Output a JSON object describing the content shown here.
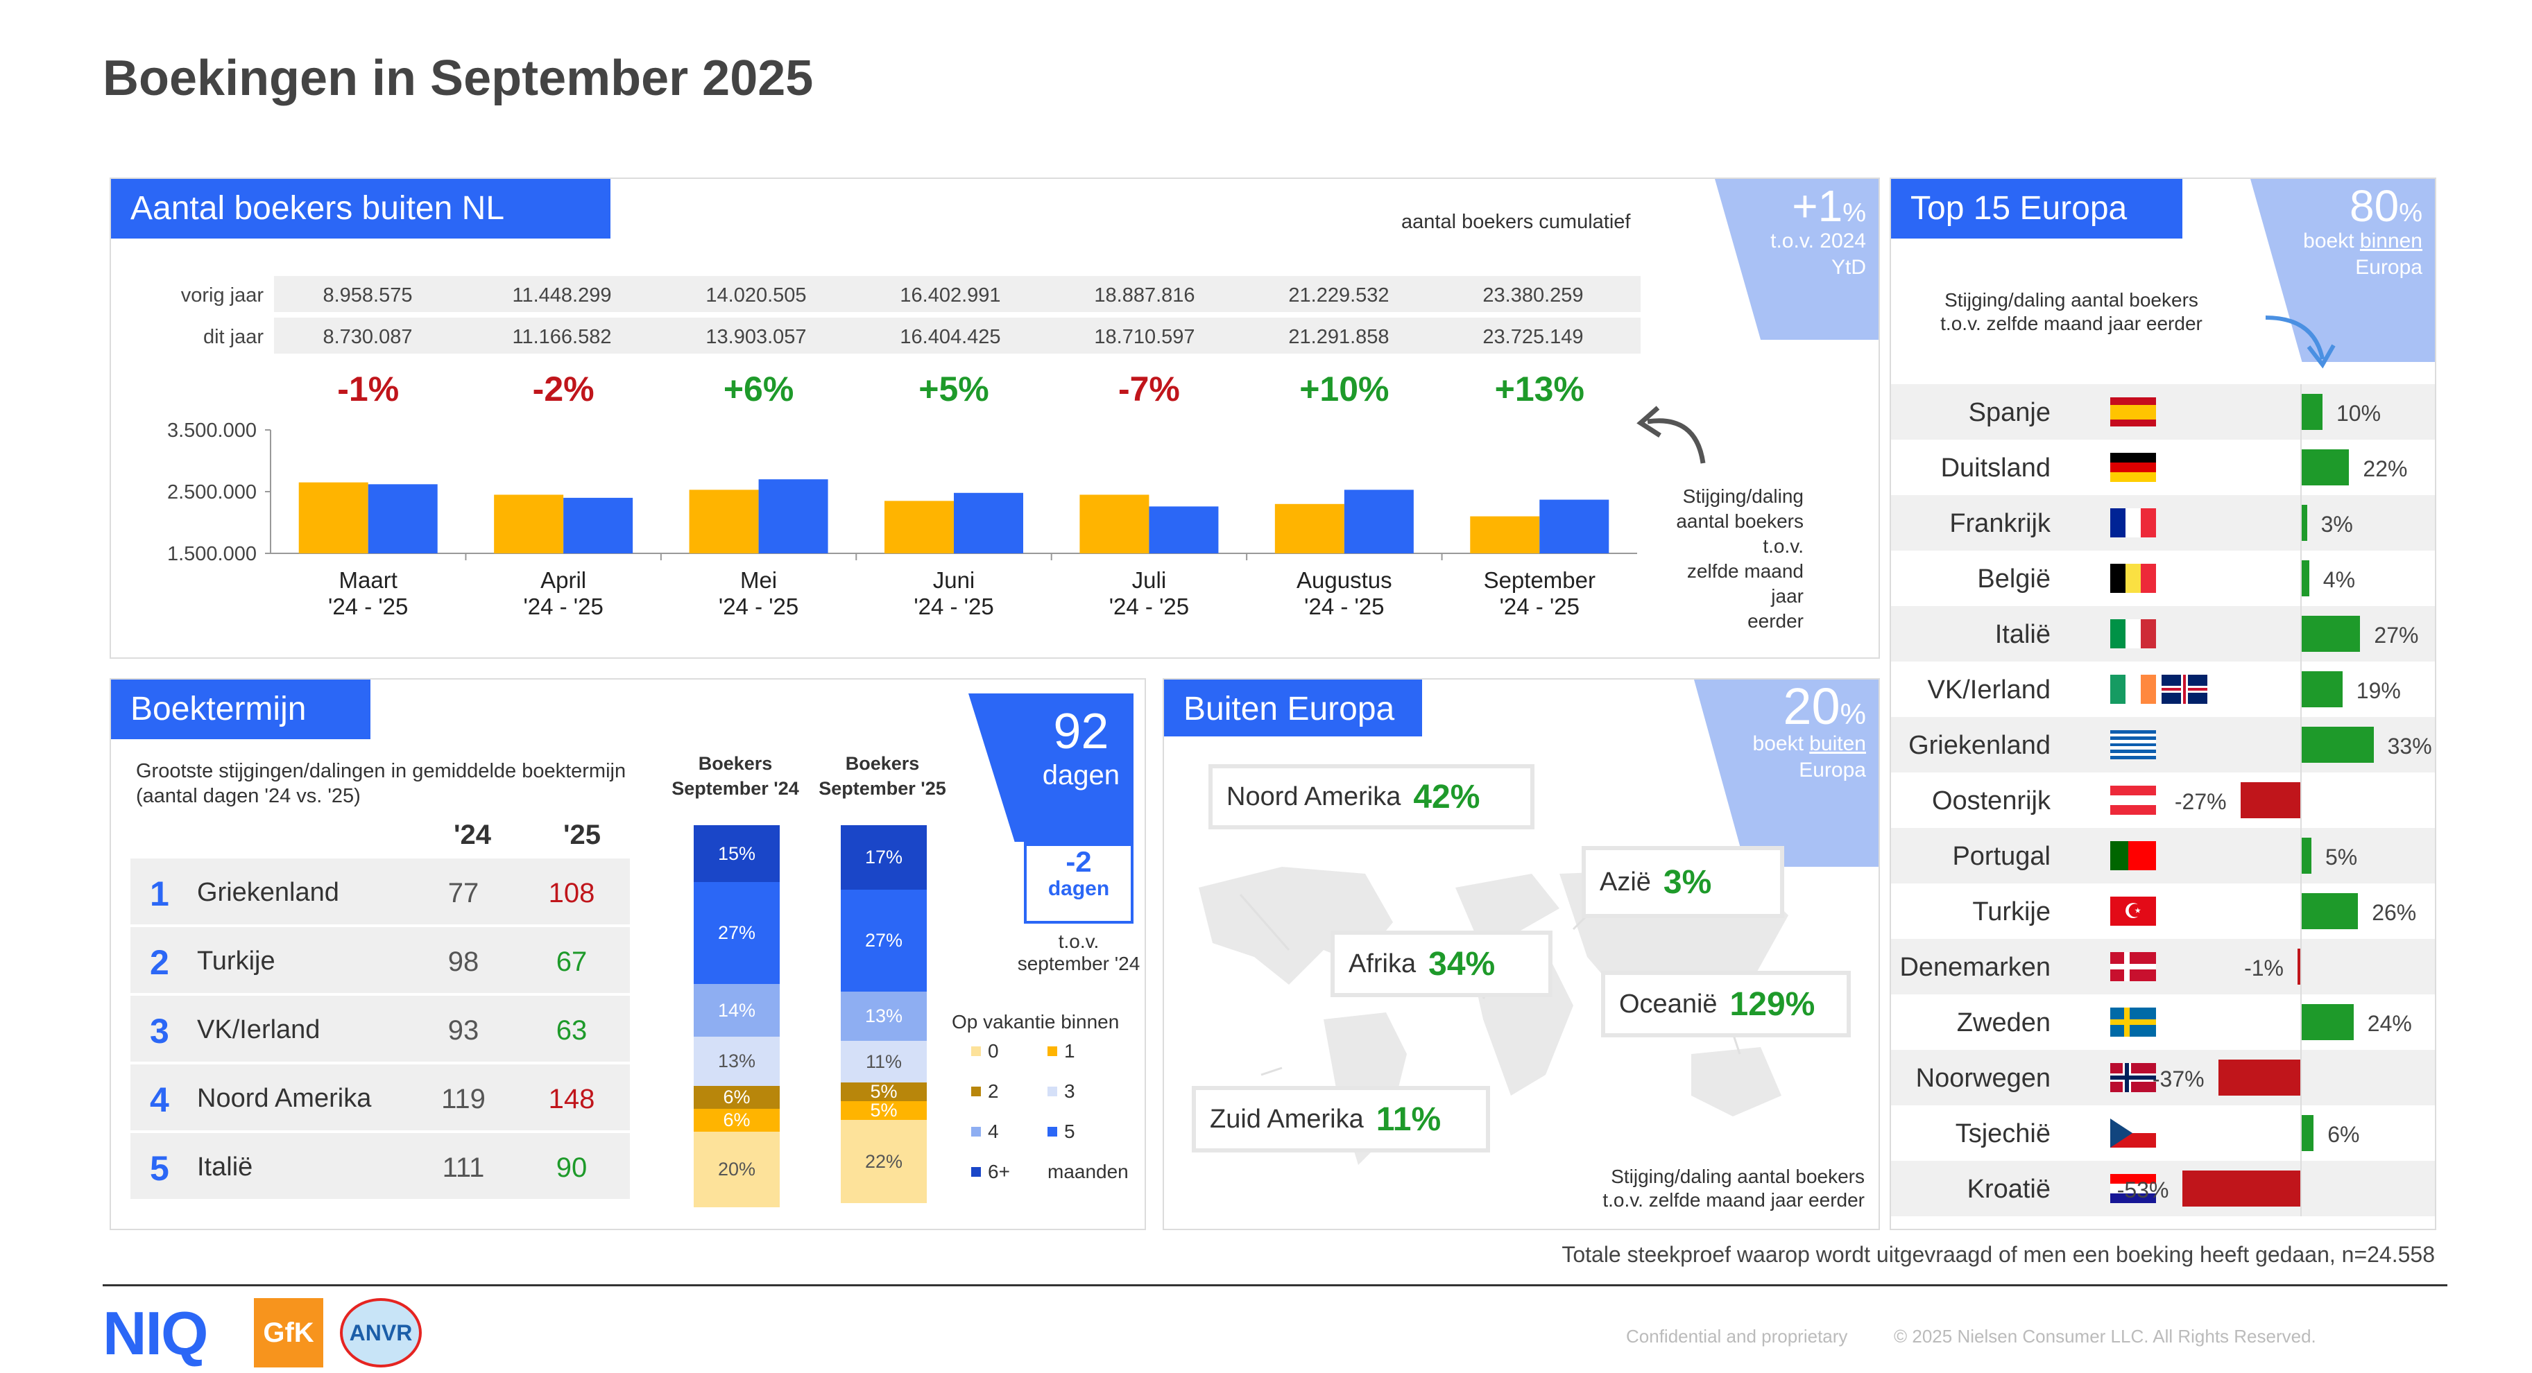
{
  "title": "Boekingen in September 2025",
  "colors": {
    "accent": "#2b67f6",
    "orange": "#ffb400",
    "green": "#1e9a2a",
    "red": "#c0151b",
    "corner": "#a9c1f5"
  },
  "boekers": {
    "header": "Aantal boekers buiten NL",
    "cumulatief": "aantal boekers cumulatief",
    "badge": {
      "big": "+1",
      "pct": "%",
      "line1": "t.o.v. 2024",
      "line2": "YtD"
    },
    "row_labels": [
      "vorig jaar",
      "dit jaar"
    ],
    "vorig": [
      "8.958.575",
      "11.448.299",
      "14.020.505",
      "16.402.991",
      "18.887.816",
      "21.229.532",
      "23.380.259"
    ],
    "dit": [
      "8.730.087",
      "11.166.582",
      "13.903.057",
      "16.404.425",
      "18.710.597",
      "21.291.858",
      "23.725.149"
    ],
    "pcts": [
      "-1%",
      "-2%",
      "+6%",
      "+5%",
      "-7%",
      "+10%",
      "+13%"
    ],
    "note": [
      "Stijging/daling",
      "aantal boekers t.o.v.",
      "zelfde maand jaar",
      "eerder"
    ]
  },
  "chart_data": {
    "type": "bar",
    "categories": [
      "Maart '24 - '25",
      "April '24 - '25",
      "Mei '24 - '25",
      "Juni '24 - '25",
      "Juli '24 - '25",
      "Augustus '24 - '25",
      "September '24 - '25"
    ],
    "month_labels": [
      "Maart",
      "April",
      "Mei",
      "Juni",
      "Juli",
      "Augustus",
      "September"
    ],
    "period_label": "'24 - '25",
    "series": [
      {
        "values": [
          2650000,
          2450000,
          2530000,
          2350000,
          2450000,
          2300000,
          2100000
        ],
        "color": "#ffb400"
      },
      {
        "values": [
          2620000,
          2400000,
          2700000,
          2480000,
          2260000,
          2530000,
          2370000
        ],
        "color": "#2b67f6"
      }
    ],
    "yticks": [
      "3.500.000",
      "2.500.000",
      "1.500.000"
    ],
    "ylim": [
      1500000,
      3500000
    ]
  },
  "boektermijn": {
    "header": "Boektermijn",
    "subtitle": [
      "Grootste stijgingen/dalingen in gemiddelde boektermijn",
      "(aantal dagen '24 vs. '25)"
    ],
    "col24": "'24",
    "col25": "'25",
    "rows": [
      {
        "n": "1",
        "name": "Griekenland",
        "v24": "77",
        "v25": "108",
        "c": "red"
      },
      {
        "n": "2",
        "name": "Turkije",
        "v24": "98",
        "v25": "67",
        "c": "green"
      },
      {
        "n": "3",
        "name": "VK/Ierland",
        "v24": "93",
        "v25": "63",
        "c": "green"
      },
      {
        "n": "4",
        "name": "Noord Amerika",
        "v24": "119",
        "v25": "148",
        "c": "red"
      },
      {
        "n": "5",
        "name": "Italië",
        "v24": "111",
        "v25": "90",
        "c": "green"
      }
    ],
    "stack_head": [
      "Boekers",
      "September '24",
      "Boekers",
      "September '25"
    ],
    "stack24": [
      {
        "v": "15%",
        "c": "#1a46c8",
        "t": "#fff",
        "h": 82
      },
      {
        "v": "27%",
        "c": "#2b67f6",
        "t": "#fff",
        "h": 147
      },
      {
        "v": "14%",
        "c": "#8eaef2",
        "t": "#fff",
        "h": 76
      },
      {
        "v": "13%",
        "c": "#d5e0f8",
        "t": "#555",
        "h": 71
      },
      {
        "v": "6%",
        "c": "#b8860b",
        "t": "#fff",
        "h": 33
      },
      {
        "v": "6%",
        "c": "#ffb400",
        "t": "#fff",
        "h": 33
      },
      {
        "v": "20%",
        "c": "#fde29a",
        "t": "#555",
        "h": 109
      }
    ],
    "stack25": [
      {
        "v": "17%",
        "c": "#1a46c8",
        "t": "#fff",
        "h": 93
      },
      {
        "v": "27%",
        "c": "#2b67f6",
        "t": "#fff",
        "h": 147
      },
      {
        "v": "13%",
        "c": "#8eaef2",
        "t": "#fff",
        "h": 71
      },
      {
        "v": "11%",
        "c": "#d5e0f8",
        "t": "#555",
        "h": 60
      },
      {
        "v": "5%",
        "c": "#b8860b",
        "t": "#fff",
        "h": 27
      },
      {
        "v": "5%",
        "c": "#ffb400",
        "t": "#fff",
        "h": 27
      },
      {
        "v": "22%",
        "c": "#fde29a",
        "t": "#555",
        "h": 120
      }
    ],
    "days": {
      "big": "92",
      "word": "dagen"
    },
    "cal": {
      "val": "-2",
      "word": "dagen",
      "line1": "t.o.v.",
      "line2": "september '24"
    },
    "legend_title": "Op vakantie binnen",
    "legend": [
      {
        "l": "0",
        "c": "#fde29a"
      },
      {
        "l": "1",
        "c": "#ffb400"
      },
      {
        "l": "2",
        "c": "#b8860b"
      },
      {
        "l": "3",
        "c": "#d5e0f8"
      },
      {
        "l": "4",
        "c": "#8eaef2"
      },
      {
        "l": "5",
        "c": "#2b67f6"
      },
      {
        "l": "6+",
        "c": "#1a46c8"
      }
    ],
    "legend_unit": "maanden"
  },
  "buiten": {
    "header": "Buiten Europa",
    "badge": {
      "big": "20",
      "pct": "%",
      "line1": "boekt",
      "link": "buiten",
      "line2": "Europa"
    },
    "regions": [
      {
        "name": "Noord Amerika",
        "v": "42%"
      },
      {
        "name": "Azië",
        "v": "3%"
      },
      {
        "name": "Afrika",
        "v": "34%"
      },
      {
        "name": "Oceanië",
        "v": "129%"
      },
      {
        "name": "Zuid Amerika",
        "v": "11%"
      }
    ],
    "note": [
      "Stijging/daling aantal boekers",
      "t.o.v. zelfde maand jaar eerder"
    ]
  },
  "europa": {
    "header": "Top 15 Europa",
    "badge": {
      "big": "80",
      "pct": "%",
      "line1": "boekt",
      "link": "binnen",
      "line2": "Europa"
    },
    "note": [
      "Stijging/daling aantal boekers",
      "t.o.v. zelfde maand jaar eerder"
    ],
    "rows": [
      {
        "name": "Spanje",
        "v": "10%",
        "n": 10,
        "flag": "es"
      },
      {
        "name": "Duitsland",
        "v": "22%",
        "n": 22,
        "flag": "de"
      },
      {
        "name": "Frankrijk",
        "v": "3%",
        "n": 3,
        "flag": "fr"
      },
      {
        "name": "België",
        "v": "4%",
        "n": 4,
        "flag": "be"
      },
      {
        "name": "Italië",
        "v": "27%",
        "n": 27,
        "flag": "it"
      },
      {
        "name": "VK/Ierland",
        "v": "19%",
        "n": 19,
        "flag": "ie-gb"
      },
      {
        "name": "Griekenland",
        "v": "33%",
        "n": 33,
        "flag": "gr"
      },
      {
        "name": "Oostenrijk",
        "v": "-27%",
        "n": -27,
        "flag": "at"
      },
      {
        "name": "Portugal",
        "v": "5%",
        "n": 5,
        "flag": "pt"
      },
      {
        "name": "Turkije",
        "v": "26%",
        "n": 26,
        "flag": "tr"
      },
      {
        "name": "Denemarken",
        "v": "-1%",
        "n": -1,
        "flag": "dk"
      },
      {
        "name": "Zweden",
        "v": "24%",
        "n": 24,
        "flag": "se"
      },
      {
        "name": "Noorwegen",
        "v": "-37%",
        "n": -37,
        "flag": "no"
      },
      {
        "name": "Tsjechië",
        "v": "6%",
        "n": 6,
        "flag": "cz"
      },
      {
        "name": "Kroatië",
        "v": "-53%",
        "n": -53,
        "flag": "hr"
      }
    ]
  },
  "footer": {
    "sample": "Totale steekproef waarop wordt uitgevraagd of men een boeking heeft gedaan, n=24.558",
    "logos": [
      "NIQ",
      "GfK",
      "ANVR"
    ],
    "confidential": "Confidential and proprietary",
    "copyright": "© 2025 Nielsen Consumer LLC. All Rights Reserved."
  }
}
